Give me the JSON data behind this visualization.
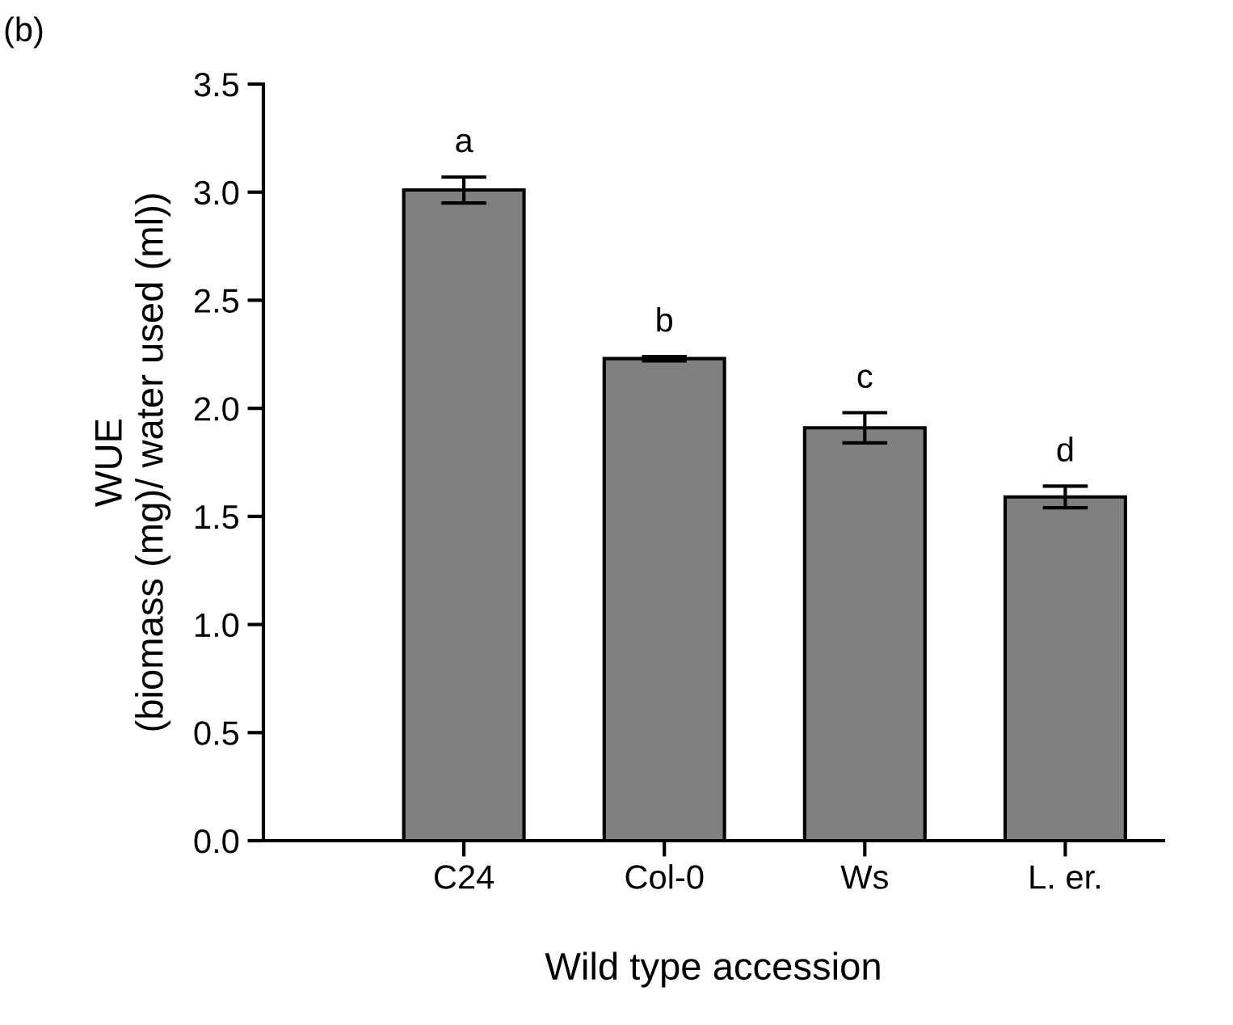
{
  "chart_data": {
    "type": "bar",
    "xlabel": "Wild type accession",
    "ylabel": "WUE\n(biomass (mg)/ water used (ml))",
    "categories": [
      "C24",
      "Col-0",
      "Ws",
      "L. er."
    ],
    "values": [
      3.01,
      2.23,
      1.91,
      1.59
    ],
    "errors": [
      0.06,
      0.01,
      0.07,
      0.05
    ],
    "color": "#808080",
    "ylim": [
      0,
      3.5
    ],
    "yticks": [
      {
        "value": 0,
        "label": "0.0"
      },
      {
        "value": 0.5,
        "label": "0.5"
      },
      {
        "value": 1,
        "label": "1.0"
      },
      {
        "value": 1.5,
        "label": "1.5"
      },
      {
        "value": 2,
        "label": "2.0"
      },
      {
        "value": 2.5,
        "label": "2.5"
      },
      {
        "value": 3,
        "label": "3.0"
      },
      {
        "value": 3.5,
        "label": "3.5"
      }
    ],
    "grid": false,
    "legend": false,
    "annotations": [
      "(b)",
      "a",
      "b",
      "c",
      "d"
    ]
  }
}
